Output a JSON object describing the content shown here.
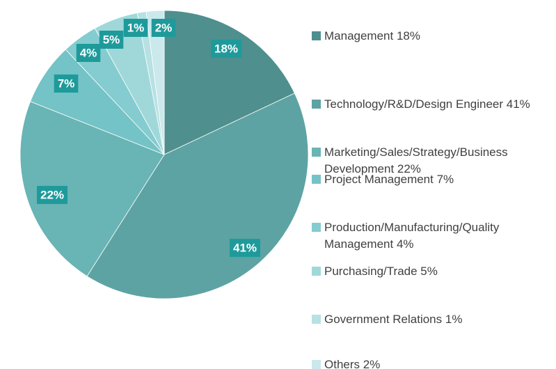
{
  "chart_data": {
    "type": "pie",
    "categories": [
      "Management 18%",
      "Technology/R&D/Design Engineer 41%",
      "Marketing/Sales/Strategy/Business Development 22%",
      "Project Management 7%",
      "Production/Manufacturing/Quality Management 4%",
      "Purchasing/Trade 5%",
      "Government Relations 1%",
      "Others 2%"
    ],
    "values": [
      18,
      41,
      22,
      7,
      4,
      5,
      1,
      2
    ],
    "value_labels": [
      "18%",
      "41%",
      "22%",
      "7%",
      "4%",
      "5%",
      "1%",
      "2%"
    ],
    "colors": [
      "#4f8f8e",
      "#5ea3a3",
      "#69b4b5",
      "#74c3c6",
      "#84ccd0",
      "#a0d8da",
      "#b7e1e3",
      "#cbe9ec"
    ],
    "label_color": "#1f9a9b",
    "legend": "right"
  }
}
